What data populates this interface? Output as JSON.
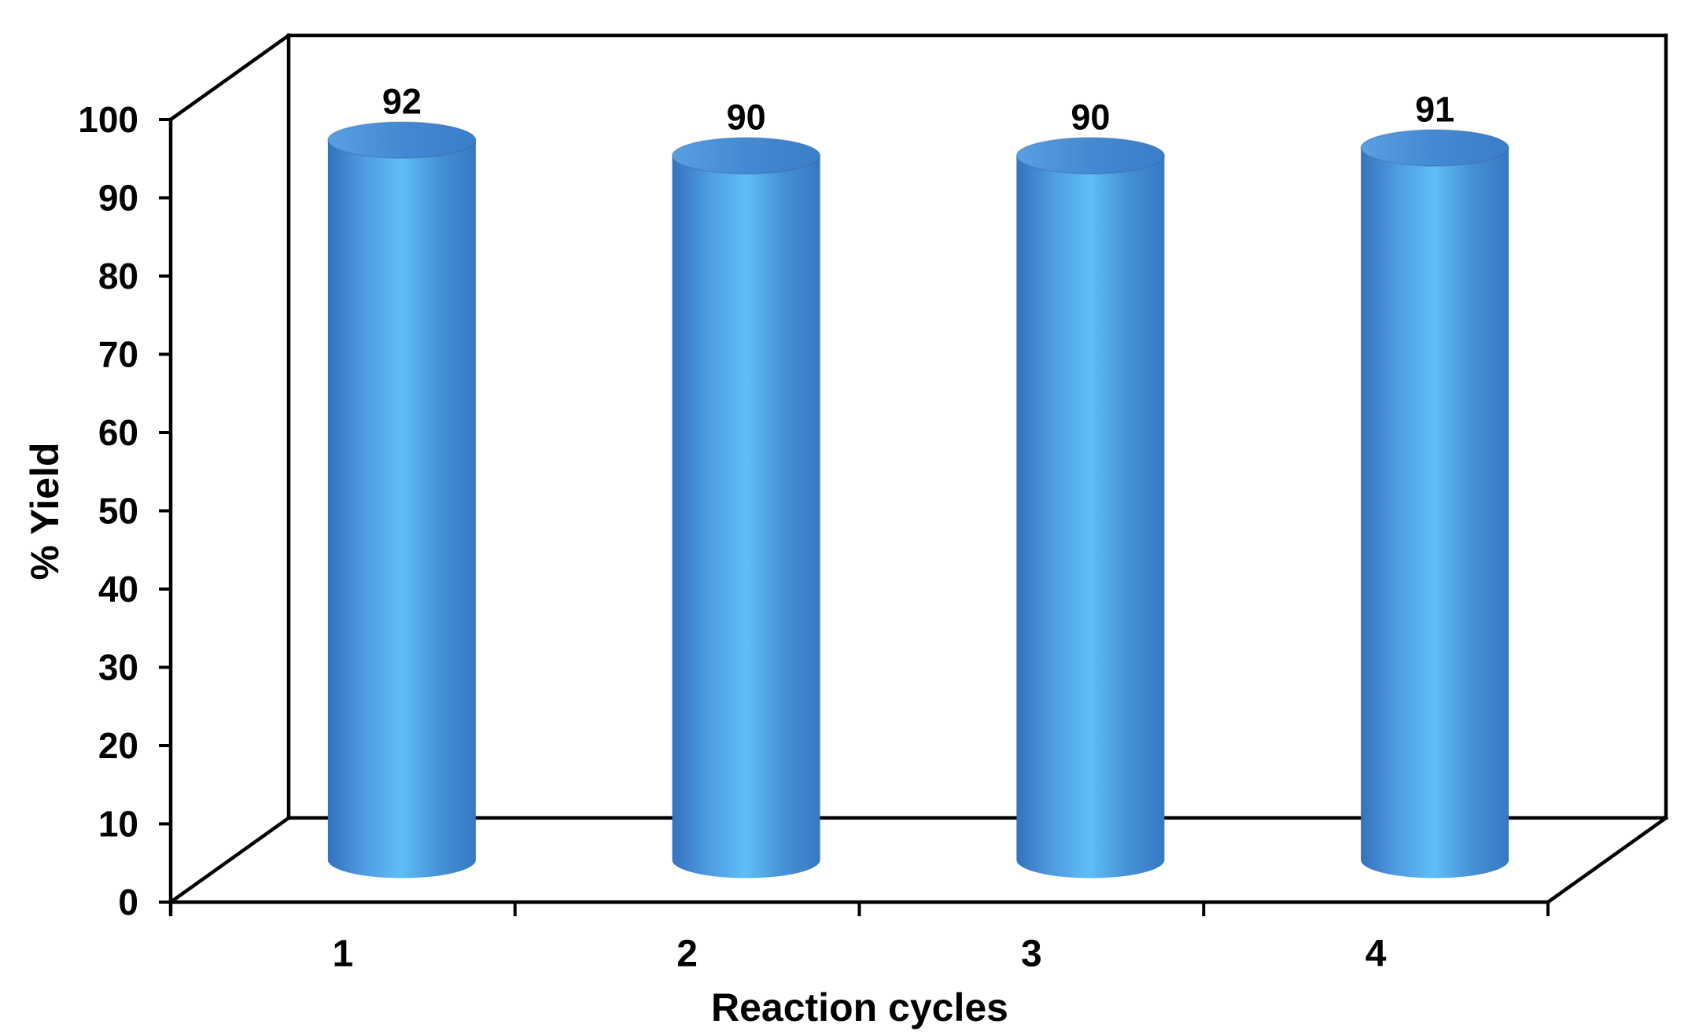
{
  "figure": {
    "background": "#ffffff",
    "axis_color": "#000000",
    "text_color": "#000000"
  },
  "chart_data": {
    "type": "bar",
    "style": "3d-cylinder",
    "title": "",
    "xlabel": "Reaction cycles",
    "ylabel": "% Yield",
    "categories": [
      "1",
      "2",
      "3",
      "4"
    ],
    "values": [
      92,
      90,
      90,
      91
    ],
    "value_labels": [
      "92",
      "90",
      "90",
      "91"
    ],
    "ylim": [
      0,
      100
    ],
    "yticks": [
      0,
      10,
      20,
      30,
      40,
      50,
      60,
      70,
      80,
      90,
      100
    ],
    "grid": false,
    "legend": "none",
    "bar_colors": {
      "body_gradient": [
        "#3572be",
        "#4f9de2",
        "#5fbef5",
        "#4591d6",
        "#3679c3"
      ],
      "top_gradient": [
        "#5a9fe2",
        "#4489d2",
        "#3b7dc8"
      ]
    }
  }
}
